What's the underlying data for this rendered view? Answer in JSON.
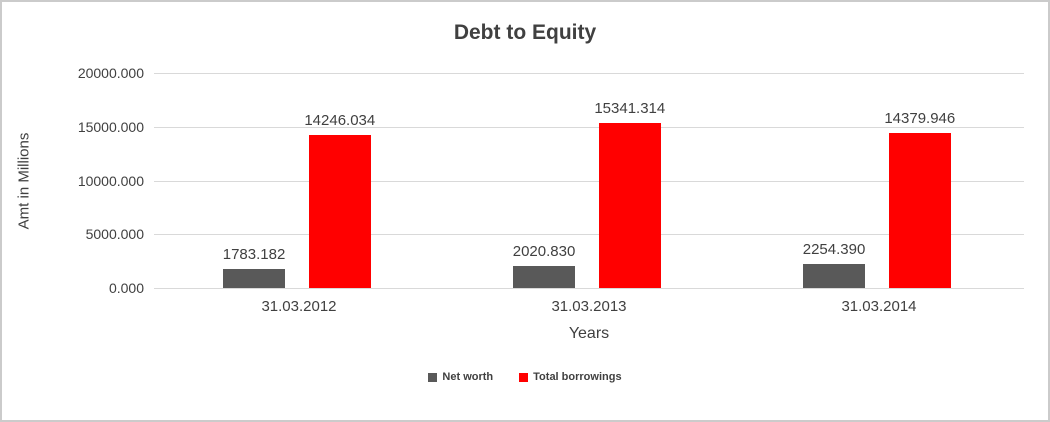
{
  "chart_data": {
    "type": "bar",
    "title": "Debt to Equity",
    "xlabel": "Years",
    "ylabel": "Amt in Millions",
    "categories": [
      "31.03.2012",
      "31.03.2013",
      "31.03.2014"
    ],
    "series": [
      {
        "name": "Net worth",
        "color": "#595959",
        "values": [
          1783.182,
          2020.83,
          2254.39
        ]
      },
      {
        "name": "Total borrowings",
        "color": "#ff0000",
        "values": [
          14246.034,
          15341.314,
          14379.946
        ]
      }
    ],
    "ylim": [
      0,
      20000
    ],
    "ytick_step": 5000,
    "ytick_labels": [
      "0.000",
      "5000.000",
      "10000.000",
      "15000.000",
      "20000.000"
    ],
    "grid": true,
    "legend_position": "bottom",
    "colors": {
      "grid": "#d9d9d9",
      "text": "#404040",
      "net_worth": "#595959",
      "total_borrowings": "#ff0000"
    }
  }
}
